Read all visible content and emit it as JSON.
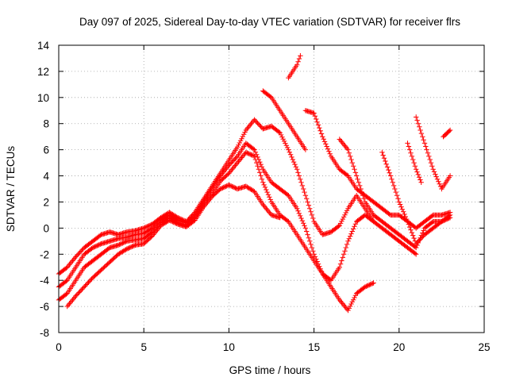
{
  "chart_data": {
    "type": "scatter",
    "title": "Day 097 of 2025, Sidereal Day-to-day VTEC variation (SDTVAR) for receiver flrs",
    "xlabel": "GPS time / hours",
    "ylabel": "SDTVAR / TECUs",
    "xlim": [
      0,
      25
    ],
    "ylim": [
      -8,
      14
    ],
    "xticks": [
      0,
      5,
      10,
      15,
      20,
      25
    ],
    "yticks": [
      -8,
      -6,
      -4,
      -2,
      0,
      2,
      4,
      6,
      8,
      10,
      12,
      14
    ],
    "grid": true,
    "marker": "plus",
    "color": "#ff0000",
    "series": [
      {
        "x": [
          0.0,
          0.5,
          1.0,
          1.5,
          2.0,
          2.5,
          3.0,
          3.5,
          4.0,
          4.5,
          5.0,
          5.5,
          6.0,
          6.5,
          7.0,
          7.5,
          8.0,
          8.5,
          9.0,
          9.5,
          10.0,
          10.5,
          11.0,
          11.5,
          12.0,
          12.5,
          13.0,
          13.5,
          14.0,
          14.5,
          15.0,
          15.5,
          16.0,
          16.5,
          17.0,
          17.5,
          18.0,
          18.5,
          19.0,
          19.5,
          20.0,
          20.5,
          21.0
        ],
        "y": [
          -3.5,
          -3.0,
          -2.2,
          -1.5,
          -1.0,
          -0.5,
          -0.3,
          -0.5,
          -0.3,
          -0.2,
          0.0,
          0.3,
          0.8,
          1.2,
          0.8,
          0.5,
          1.2,
          2.2,
          3.2,
          4.2,
          5.2,
          6.2,
          7.5,
          8.3,
          7.6,
          7.8,
          7.3,
          6.0,
          4.5,
          2.5,
          0.5,
          -0.5,
          -0.3,
          0.2,
          1.5,
          2.5,
          1.5,
          0.5,
          0.0,
          -0.5,
          -1.0,
          -1.5,
          -2.0
        ]
      },
      {
        "x": [
          0.0,
          0.5,
          1.0,
          1.5,
          2.0,
          2.5,
          3.0,
          3.5,
          4.0,
          4.5,
          5.0,
          5.5,
          6.0,
          6.5,
          7.0,
          7.5,
          8.0,
          8.5,
          9.0,
          9.5,
          10.0,
          10.5,
          11.0,
          11.5,
          12.0,
          12.5,
          13.0,
          13.5,
          14.0,
          14.5,
          15.0,
          15.5,
          16.0,
          16.5,
          17.0,
          17.5,
          18.0,
          18.5
        ],
        "y": [
          -4.5,
          -4.0,
          -3.0,
          -2.0,
          -1.5,
          -1.2,
          -1.0,
          -0.8,
          -0.7,
          -0.5,
          -0.4,
          0.0,
          0.6,
          1.0,
          0.6,
          0.4,
          1.0,
          2.0,
          3.0,
          4.0,
          4.8,
          5.5,
          6.5,
          6.0,
          4.5,
          3.5,
          3.0,
          2.5,
          1.5,
          0.0,
          -2.0,
          -3.5,
          -4.0,
          -3.0,
          -1.0,
          0.5,
          1.0,
          0.5
        ]
      },
      {
        "x": [
          0.0,
          0.5,
          1.0,
          1.5,
          2.0,
          2.5,
          3.0,
          3.5,
          4.0,
          4.5,
          5.0,
          5.5,
          6.0,
          6.5,
          7.0,
          7.5,
          8.0,
          8.5,
          9.0,
          9.5,
          10.0,
          10.5,
          11.0,
          11.5,
          12.0,
          12.5,
          13.0,
          13.5,
          14.0,
          14.5,
          15.0,
          15.5,
          16.0,
          16.5,
          17.0,
          17.5,
          18.0,
          18.5
        ],
        "y": [
          -5.5,
          -5.0,
          -4.0,
          -3.0,
          -2.5,
          -2.0,
          -1.5,
          -1.3,
          -1.0,
          -0.9,
          -0.8,
          -0.3,
          0.4,
          0.8,
          0.4,
          0.2,
          0.8,
          1.8,
          2.6,
          3.6,
          4.2,
          5.0,
          5.8,
          5.5,
          3.5,
          2.0,
          1.0,
          0.5,
          -0.5,
          -1.5,
          -2.5,
          -3.5,
          -4.5,
          -5.5,
          -6.3,
          -5.0,
          -4.5,
          -4.2
        ]
      },
      {
        "x": [
          0.5,
          1.0,
          1.5,
          2.0,
          2.5,
          3.0,
          3.5,
          4.0,
          4.5,
          5.0,
          5.5,
          6.0,
          6.5,
          7.0,
          7.5,
          8.0,
          8.5,
          9.0,
          9.5,
          10.0,
          10.5,
          11.0,
          11.5,
          12.0,
          12.5,
          13.0
        ],
        "y": [
          -6.0,
          -5.2,
          -4.5,
          -3.8,
          -3.2,
          -2.6,
          -2.0,
          -1.6,
          -1.3,
          -1.2,
          -0.6,
          0.2,
          0.6,
          0.3,
          0.1,
          0.6,
          1.6,
          2.4,
          3.0,
          3.3,
          3.0,
          3.2,
          2.8,
          1.8,
          1.0,
          0.8
        ]
      },
      {
        "x": [
          12.0,
          12.5,
          13.0,
          13.5,
          14.0,
          14.5
        ],
        "y": [
          10.5,
          10.0,
          9.0,
          8.0,
          7.0,
          6.0
        ]
      },
      {
        "x": [
          13.5,
          14.0,
          14.2
        ],
        "y": [
          11.5,
          12.5,
          13.2
        ]
      },
      {
        "x": [
          14.5,
          15.0,
          15.5,
          16.0,
          16.5,
          17.0,
          17.5,
          18.0,
          18.5,
          19.0,
          19.5,
          20.0,
          20.5,
          21.0,
          21.5,
          22.0,
          22.5,
          23.0
        ],
        "y": [
          9.0,
          8.8,
          7.0,
          5.5,
          4.5,
          4.0,
          3.0,
          2.5,
          2.0,
          1.5,
          1.0,
          1.0,
          0.5,
          0.0,
          0.5,
          1.0,
          1.0,
          1.2
        ]
      },
      {
        "x": [
          16.5,
          17.0,
          17.5,
          18.0,
          18.5,
          19.0,
          19.5,
          20.0,
          20.5,
          21.0,
          21.5,
          22.0,
          22.5,
          23.0
        ],
        "y": [
          6.8,
          6.0,
          4.0,
          2.0,
          1.0,
          0.5,
          0.0,
          -0.5,
          -1.0,
          -1.5,
          0.0,
          0.5,
          0.5,
          0.8
        ]
      },
      {
        "x": [
          19.0,
          19.5,
          20.0,
          20.5,
          21.0,
          21.5,
          22.0,
          22.5,
          23.0
        ],
        "y": [
          5.8,
          4.0,
          2.0,
          0.5,
          -1.2,
          -0.5,
          0.0,
          0.5,
          1.0
        ]
      },
      {
        "x": [
          20.5,
          21.0,
          21.3
        ],
        "y": [
          6.5,
          4.5,
          3.5
        ]
      },
      {
        "x": [
          21.0,
          21.5,
          22.0,
          22.5,
          23.0
        ],
        "y": [
          8.5,
          6.5,
          4.5,
          3.0,
          4.0
        ]
      },
      {
        "x": [
          22.6,
          23.0
        ],
        "y": [
          7.0,
          7.5
        ]
      }
    ]
  }
}
